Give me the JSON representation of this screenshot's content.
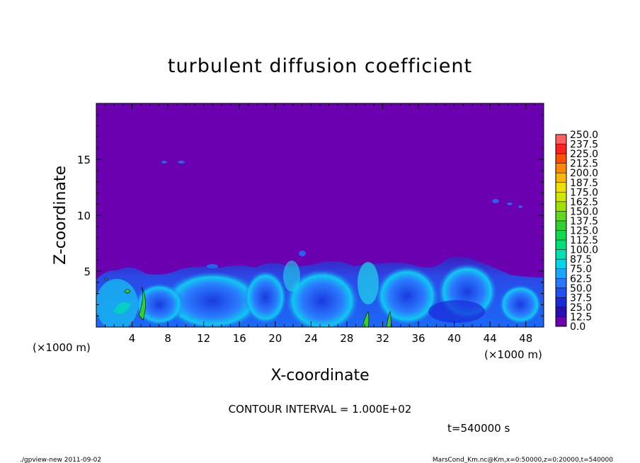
{
  "chart_data": {
    "type": "heatmap",
    "title": "turbulent diffusion coefficient",
    "xlabel": "X-coordinate",
    "ylabel": "Z-coordinate",
    "x_unit": "(×1000 m)",
    "z_unit": "(×1000 m)",
    "xlim": [
      0,
      50
    ],
    "ylim": [
      0,
      20
    ],
    "x_ticks": [
      4,
      8,
      12,
      16,
      20,
      24,
      28,
      32,
      36,
      40,
      44,
      48
    ],
    "y_ticks": [
      5,
      10,
      15
    ],
    "colorbar": {
      "levels": [
        "0.0",
        "12.5",
        "25.0",
        "37.5",
        "50.0",
        "62.5",
        "75.0",
        "87.5",
        "100.0",
        "112.5",
        "125.0",
        "137.5",
        "150.0",
        "162.5",
        "175.0",
        "187.5",
        "200.0",
        "212.5",
        "225.0",
        "237.5",
        "250.0"
      ],
      "colors": [
        "#6a00b0",
        "#2a0fb0",
        "#1a2ad8",
        "#2050f0",
        "#2a78ff",
        "#18a8ff",
        "#00d8e8",
        "#00e0b0",
        "#00e07a",
        "#10d850",
        "#30d030",
        "#60d820",
        "#a0e000",
        "#d0e800",
        "#f0e000",
        "#f8b800",
        "#ff8800",
        "#ff5000",
        "#ff2020",
        "#ff6060",
        "#ff9090"
      ]
    },
    "contour_interval": "CONTOUR INTERVAL = 1.000E+02",
    "time_label": "t=540000 s",
    "field_summary": "Km mostly 0.0 above ~6 km; turbulent layer 0–6 km with values 12.5–100; small regions >100 near x≈5, 30, 32"
  },
  "footer": {
    "left": "./gpview-new  2011-09-02",
    "right": "MarsCond_Km.nc@Km,x=0:50000,z=0:20000,t=540000"
  }
}
